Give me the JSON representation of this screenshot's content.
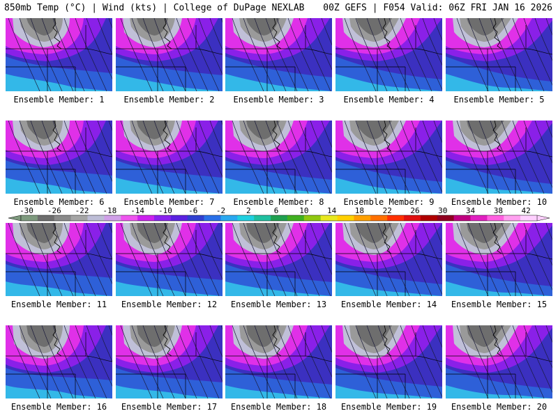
{
  "header": {
    "left": "850mb Temp (°C) | Wind (kts) | College of DuPage NEXLAB",
    "right": "00Z GEFS | F054 Valid: 06Z FRI JAN 16 2026"
  },
  "member_label_prefix": "Ensemble Member: ",
  "members": [
    1,
    2,
    3,
    4,
    5,
    6,
    7,
    8,
    9,
    10,
    11,
    12,
    13,
    14,
    15,
    16,
    17,
    18,
    19,
    20
  ],
  "colorbar": {
    "ticks": [
      "-30",
      "-26",
      "-22",
      "-18",
      "-14",
      "-10",
      "-6",
      "-2",
      "2",
      "6",
      "10",
      "14",
      "18",
      "22",
      "26",
      "30",
      "34",
      "38",
      "42"
    ],
    "colors": [
      "#7e9a7e",
      "#6d6d6d",
      "#8a8a8a",
      "#a5a5a5",
      "#bdbdd6",
      "#d0a0e8",
      "#ee55ee",
      "#cc22ee",
      "#8a22ee",
      "#5a22e0",
      "#3040d0",
      "#2a70e8",
      "#2aa8f0",
      "#20d0e0",
      "#20c0a0",
      "#20a050",
      "#40b020",
      "#90c810",
      "#e8e820",
      "#ffd000",
      "#ffa000",
      "#ff7000",
      "#ff3000",
      "#e01010",
      "#b00000",
      "#900020",
      "#c00080",
      "#e020c0",
      "#ff60e0",
      "#ffa0f0",
      "#ffd0ff"
    ],
    "unit": "°C"
  },
  "legend_icons": {
    "left_arrow": "triangle-left-icon",
    "right_arrow": "triangle-right-icon"
  }
}
